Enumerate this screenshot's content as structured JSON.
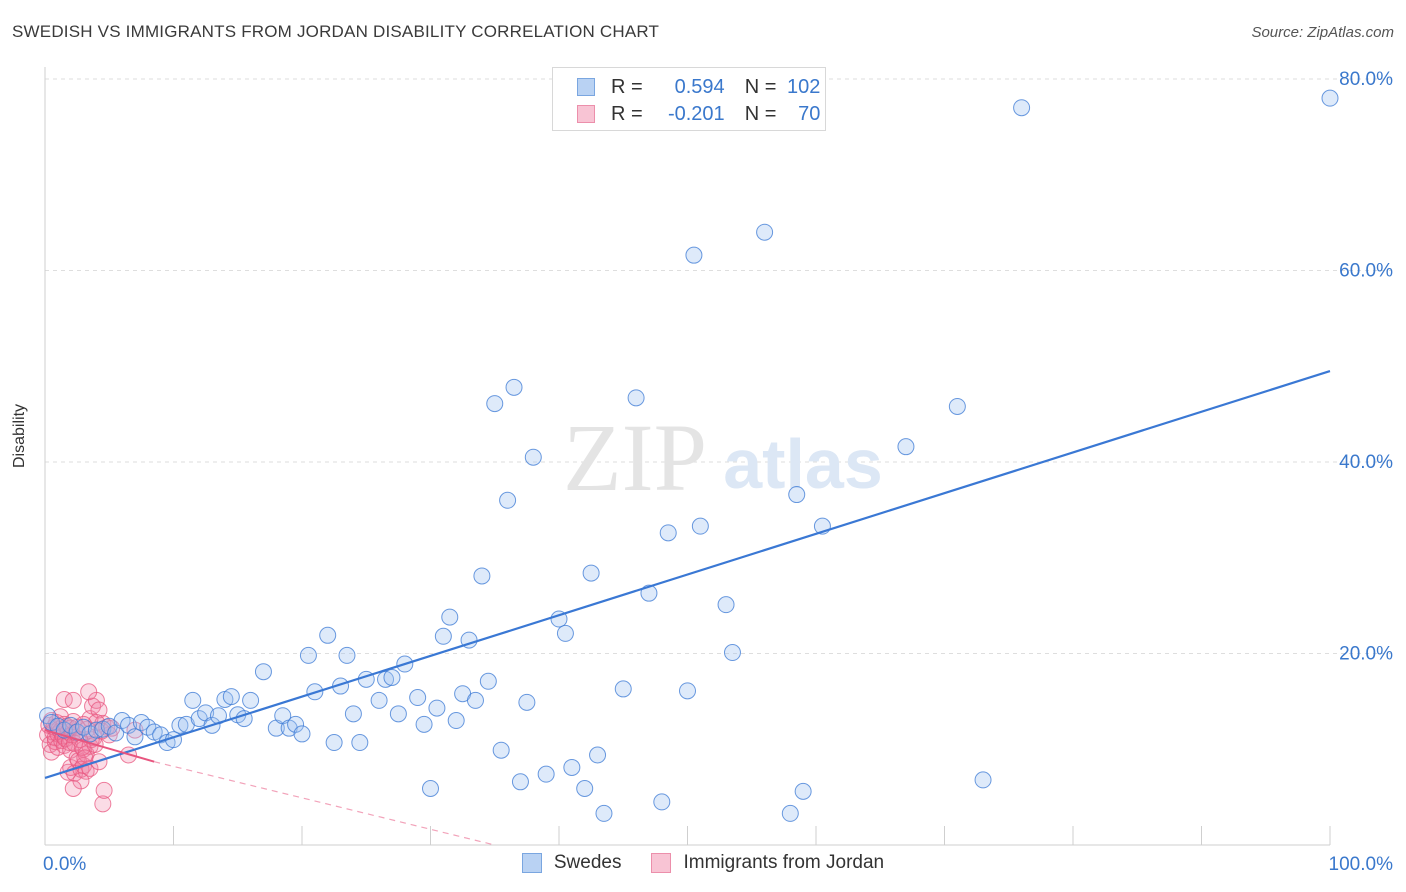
{
  "title": "SWEDISH VS IMMIGRANTS FROM JORDAN DISABILITY CORRELATION CHART",
  "source": "Source: ZipAtlas.com",
  "watermark": {
    "zip": "ZIP",
    "atlas": "atlas"
  },
  "legend": {
    "r_label": "R =",
    "n_label": "N =",
    "rows": [
      {
        "r": "0.594",
        "n": "102",
        "fill": "#b9d2f3",
        "stroke": "#7aa6e0"
      },
      {
        "r": "-0.201",
        "n": "70",
        "fill": "#f8c4d4",
        "stroke": "#ec8fab"
      }
    ]
  },
  "colors": {
    "swedes": "#3a78d4",
    "jordan": "#e8557f",
    "axis_text": "#3a78cc",
    "grid": "#dedede"
  },
  "chart_data": {
    "type": "scatter",
    "title": "SWEDISH VS IMMIGRANTS FROM JORDAN DISABILITY CORRELATION CHART",
    "xlabel": "",
    "ylabel": "Disability",
    "xlim": [
      0,
      100
    ],
    "ylim": [
      0,
      80
    ],
    "x_tick_labels": [
      "0.0%",
      "100.0%"
    ],
    "y_ticks": [
      20,
      40,
      60,
      80
    ],
    "y_tick_labels": [
      "20.0%",
      "40.0%",
      "60.0%",
      "80.0%"
    ],
    "grid": true,
    "legend_position": "bottom",
    "series": [
      {
        "name": "Swedes",
        "color": "#3a78d4",
        "trend": {
          "x": [
            0,
            100
          ],
          "y": [
            7.0,
            49.5
          ]
        },
        "points": [
          [
            0.2,
            13.5
          ],
          [
            0.5,
            12.8
          ],
          [
            1,
            12.4
          ],
          [
            1.5,
            12
          ],
          [
            2,
            12.5
          ],
          [
            2.5,
            11.8
          ],
          [
            3,
            12.3
          ],
          [
            3.5,
            11.6
          ],
          [
            4,
            12.0
          ],
          [
            4.5,
            12.1
          ],
          [
            5,
            12.4
          ],
          [
            5.5,
            11.7
          ],
          [
            6,
            13
          ],
          [
            6.5,
            12.5
          ],
          [
            7,
            11.3
          ],
          [
            7.5,
            12.8
          ],
          [
            8,
            12.3
          ],
          [
            8.5,
            11.8
          ],
          [
            9,
            11.5
          ],
          [
            9.5,
            10.7
          ],
          [
            10,
            11.0
          ],
          [
            10.5,
            12.5
          ],
          [
            11,
            12.6
          ],
          [
            11.5,
            15.1
          ],
          [
            12,
            13.2
          ],
          [
            12.5,
            13.8
          ],
          [
            13,
            12.5
          ],
          [
            13.5,
            13.5
          ],
          [
            14,
            15.2
          ],
          [
            14.5,
            15.5
          ],
          [
            15,
            13.6
          ],
          [
            15.5,
            13.2
          ],
          [
            16,
            15.1
          ],
          [
            17,
            18.1
          ],
          [
            18,
            12.2
          ],
          [
            18.5,
            13.5
          ],
          [
            19,
            12.2
          ],
          [
            19.5,
            12.6
          ],
          [
            20,
            11.6
          ],
          [
            20.5,
            19.8
          ],
          [
            21,
            16
          ],
          [
            22,
            21.9
          ],
          [
            22.5,
            10.7
          ],
          [
            23,
            16.6
          ],
          [
            23.5,
            19.8
          ],
          [
            24,
            13.7
          ],
          [
            24.5,
            10.7
          ],
          [
            25,
            17.3
          ],
          [
            26,
            15.1
          ],
          [
            26.5,
            17.3
          ],
          [
            27,
            17.5
          ],
          [
            27.5,
            13.7
          ],
          [
            28,
            18.9
          ],
          [
            29,
            15.4
          ],
          [
            29.5,
            12.6
          ],
          [
            30,
            5.9
          ],
          [
            30.5,
            14.3
          ],
          [
            31,
            21.8
          ],
          [
            31.5,
            23.8
          ],
          [
            32,
            13
          ],
          [
            32.5,
            15.8
          ],
          [
            33,
            21.4
          ],
          [
            33.5,
            15.1
          ],
          [
            34,
            28.1
          ],
          [
            34.5,
            17.1
          ],
          [
            35,
            46.1
          ],
          [
            35.5,
            9.9
          ],
          [
            36,
            36
          ],
          [
            36.5,
            47.8
          ],
          [
            37,
            6.6
          ],
          [
            37.5,
            14.9
          ],
          [
            38,
            40.5
          ],
          [
            39,
            7.4
          ],
          [
            40,
            23.6
          ],
          [
            40.5,
            22.1
          ],
          [
            41,
            8.1
          ],
          [
            42,
            5.9
          ],
          [
            42.5,
            28.4
          ],
          [
            43,
            9.4
          ],
          [
            43.5,
            3.3
          ],
          [
            45,
            16.3
          ],
          [
            46,
            46.7
          ],
          [
            47,
            26.3
          ],
          [
            48,
            4.5
          ],
          [
            48.5,
            32.6
          ],
          [
            50,
            16.1
          ],
          [
            50.5,
            61.6
          ],
          [
            51,
            33.3
          ],
          [
            53,
            25.1
          ],
          [
            53.5,
            20.1
          ],
          [
            56,
            64
          ],
          [
            58,
            3.3
          ],
          [
            58.5,
            36.6
          ],
          [
            59,
            5.6
          ],
          [
            60.5,
            33.3
          ],
          [
            67,
            41.6
          ],
          [
            71,
            45.8
          ],
          [
            73,
            6.8
          ],
          [
            76,
            77
          ],
          [
            100,
            78
          ]
        ]
      },
      {
        "name": "Immigrants from Jordan",
        "color": "#e8557f",
        "trend": {
          "x": [
            0,
            8.5
          ],
          "y": [
            12.0,
            8.7
          ]
        },
        "trend_dashed": {
          "x": [
            8.5,
            35
          ],
          "y": [
            8.7,
            0
          ]
        },
        "points": [
          [
            0.2,
            11.5
          ],
          [
            0.3,
            12.5
          ],
          [
            0.4,
            10.5
          ],
          [
            0.5,
            13
          ],
          [
            0.5,
            9.7
          ],
          [
            0.6,
            11.8
          ],
          [
            0.7,
            12.3
          ],
          [
            0.8,
            10.8
          ],
          [
            0.8,
            11.2
          ],
          [
            0.9,
            12.8
          ],
          [
            1,
            11.6
          ],
          [
            1,
            10.2
          ],
          [
            1.1,
            12.1
          ],
          [
            1.2,
            11.9
          ],
          [
            1.2,
            13.4
          ],
          [
            1.3,
            10.9
          ],
          [
            1.4,
            11.4
          ],
          [
            1.5,
            12.6
          ],
          [
            1.5,
            10.4
          ],
          [
            1.6,
            11.1
          ],
          [
            1.7,
            12.4
          ],
          [
            1.8,
            11.8
          ],
          [
            1.9,
            10.7
          ],
          [
            2,
            12.2
          ],
          [
            2,
            9.9
          ],
          [
            2.1,
            11.5
          ],
          [
            2.2,
            12.9
          ],
          [
            2.3,
            10.6
          ],
          [
            2.4,
            11.7
          ],
          [
            2.5,
            12.3
          ],
          [
            1.5,
            15.2
          ],
          [
            2.2,
            15.1
          ],
          [
            1.8,
            7.6
          ],
          [
            2,
            8.1
          ],
          [
            2.3,
            7.5
          ],
          [
            2.5,
            9.1
          ],
          [
            2.6,
            8.8
          ],
          [
            2.8,
            7.9
          ],
          [
            3,
            8.3
          ],
          [
            3.2,
            7.7
          ],
          [
            3.5,
            8.0
          ],
          [
            2.8,
            6.7
          ],
          [
            3,
            10.0
          ],
          [
            3.2,
            9.5
          ],
          [
            3.5,
            10.3
          ],
          [
            3.8,
            11.2
          ],
          [
            3.5,
            13.2
          ],
          [
            3.7,
            14.5
          ],
          [
            4,
            15.1
          ],
          [
            4.2,
            14.1
          ],
          [
            4.5,
            12.7
          ],
          [
            4.8,
            12.3
          ],
          [
            5,
            11.5
          ],
          [
            2.2,
            5.9
          ],
          [
            4.5,
            4.3
          ],
          [
            4.6,
            5.7
          ],
          [
            3.4,
            16
          ],
          [
            4,
            12.8
          ],
          [
            4.2,
            8.7
          ],
          [
            3.6,
            11
          ],
          [
            2.7,
            11
          ],
          [
            2.9,
            10.2
          ],
          [
            3.1,
            9.1
          ],
          [
            3.3,
            12.1
          ],
          [
            3.9,
            10.5
          ],
          [
            4.4,
            11.9
          ],
          [
            5.2,
            12.2
          ],
          [
            6.5,
            9.4
          ],
          [
            7,
            12
          ],
          [
            3,
            12.6
          ]
        ]
      }
    ]
  }
}
